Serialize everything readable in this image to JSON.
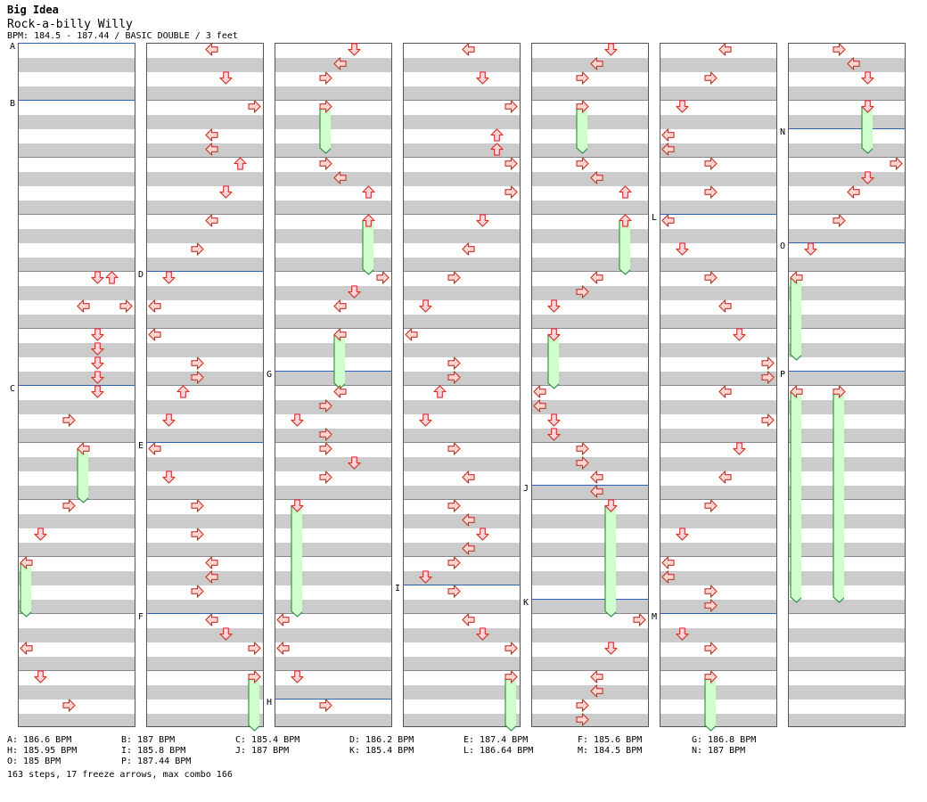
{
  "header": {
    "title": "Big Idea",
    "song": "Rock-a-billy Willy",
    "info": "BPM: 184.5 - 187.44 / BASIC DOUBLE / 3 feet"
  },
  "bpm_changes": [
    {
      "label": "A",
      "col": 0,
      "beat": 0
    },
    {
      "label": "B",
      "col": 0,
      "beat": 8
    },
    {
      "label": "C",
      "col": 0,
      "beat": 48
    },
    {
      "label": "D",
      "col": 1,
      "beat": 32
    },
    {
      "label": "E",
      "col": 1,
      "beat": 56
    },
    {
      "label": "F",
      "col": 1,
      "beat": 80
    },
    {
      "label": "G",
      "col": 2,
      "beat": 46
    },
    {
      "label": "H",
      "col": 2,
      "beat": 92
    },
    {
      "label": "I",
      "col": 3,
      "beat": 76
    },
    {
      "label": "J",
      "col": 4,
      "beat": 62
    },
    {
      "label": "K",
      "col": 4,
      "beat": 78
    },
    {
      "label": "L",
      "col": 5,
      "beat": 24
    },
    {
      "label": "M",
      "col": 5,
      "beat": 80
    },
    {
      "label": "N",
      "col": 6,
      "beat": 12
    },
    {
      "label": "O",
      "col": 6,
      "beat": 28
    },
    {
      "label": "P",
      "col": 6,
      "beat": 46
    }
  ],
  "notes": [
    {
      "c": 0,
      "b": 32,
      "l": 5,
      "d": "down"
    },
    {
      "c": 0,
      "b": 32,
      "l": 6,
      "d": "up"
    },
    {
      "c": 0,
      "b": 36,
      "l": 4,
      "d": "left"
    },
    {
      "c": 0,
      "b": 36,
      "l": 7,
      "d": "right"
    },
    {
      "c": 0,
      "b": 40,
      "l": 5,
      "d": "down"
    },
    {
      "c": 0,
      "b": 42,
      "l": 5,
      "d": "down"
    },
    {
      "c": 0,
      "b": 44,
      "l": 5,
      "d": "down"
    },
    {
      "c": 0,
      "b": 46,
      "l": 5,
      "d": "down"
    },
    {
      "c": 0,
      "b": 48,
      "l": 5,
      "d": "down"
    },
    {
      "c": 0,
      "b": 52,
      "l": 3,
      "d": "right"
    },
    {
      "c": 0,
      "b": 56,
      "l": 4,
      "d": "left",
      "f": 7
    },
    {
      "c": 0,
      "b": 64,
      "l": 3,
      "d": "right"
    },
    {
      "c": 0,
      "b": 68,
      "l": 1,
      "d": "down"
    },
    {
      "c": 0,
      "b": 72,
      "l": 0,
      "d": "left",
      "f": 7
    },
    {
      "c": 0,
      "b": 84,
      "l": 0,
      "d": "left"
    },
    {
      "c": 0,
      "b": 88,
      "l": 1,
      "d": "down"
    },
    {
      "c": 0,
      "b": 92,
      "l": 3,
      "d": "right"
    },
    {
      "c": 1,
      "b": 0,
      "l": 4,
      "d": "left"
    },
    {
      "c": 1,
      "b": 4,
      "l": 5,
      "d": "down"
    },
    {
      "c": 1,
      "b": 8,
      "l": 7,
      "d": "right"
    },
    {
      "c": 1,
      "b": 12,
      "l": 4,
      "d": "left"
    },
    {
      "c": 1,
      "b": 14,
      "l": 4,
      "d": "left"
    },
    {
      "c": 1,
      "b": 16,
      "l": 6,
      "d": "up"
    },
    {
      "c": 1,
      "b": 20,
      "l": 5,
      "d": "down"
    },
    {
      "c": 1,
      "b": 24,
      "l": 4,
      "d": "left"
    },
    {
      "c": 1,
      "b": 28,
      "l": 3,
      "d": "right"
    },
    {
      "c": 1,
      "b": 32,
      "l": 1,
      "d": "down"
    },
    {
      "c": 1,
      "b": 36,
      "l": 0,
      "d": "left"
    },
    {
      "c": 1,
      "b": 40,
      "l": 0,
      "d": "left"
    },
    {
      "c": 1,
      "b": 44,
      "l": 3,
      "d": "right"
    },
    {
      "c": 1,
      "b": 46,
      "l": 3,
      "d": "right"
    },
    {
      "c": 1,
      "b": 48,
      "l": 2,
      "d": "up"
    },
    {
      "c": 1,
      "b": 52,
      "l": 1,
      "d": "down"
    },
    {
      "c": 1,
      "b": 56,
      "l": 0,
      "d": "left"
    },
    {
      "c": 1,
      "b": 60,
      "l": 1,
      "d": "down"
    },
    {
      "c": 1,
      "b": 64,
      "l": 3,
      "d": "right"
    },
    {
      "c": 1,
      "b": 68,
      "l": 3,
      "d": "right"
    },
    {
      "c": 1,
      "b": 72,
      "l": 4,
      "d": "left"
    },
    {
      "c": 1,
      "b": 74,
      "l": 4,
      "d": "left"
    },
    {
      "c": 1,
      "b": 76,
      "l": 3,
      "d": "right"
    },
    {
      "c": 1,
      "b": 80,
      "l": 4,
      "d": "left"
    },
    {
      "c": 1,
      "b": 82,
      "l": 5,
      "d": "down"
    },
    {
      "c": 1,
      "b": 84,
      "l": 7,
      "d": "right"
    },
    {
      "c": 1,
      "b": 88,
      "l": 7,
      "d": "right",
      "f": 7
    },
    {
      "c": 2,
      "b": 0,
      "l": 5,
      "d": "down"
    },
    {
      "c": 2,
      "b": 2,
      "l": 4,
      "d": "left"
    },
    {
      "c": 2,
      "b": 4,
      "l": 3,
      "d": "right"
    },
    {
      "c": 2,
      "b": 8,
      "l": 3,
      "d": "right",
      "f": 6
    },
    {
      "c": 2,
      "b": 16,
      "l": 3,
      "d": "right"
    },
    {
      "c": 2,
      "b": 18,
      "l": 4,
      "d": "left"
    },
    {
      "c": 2,
      "b": 20,
      "l": 6,
      "d": "up"
    },
    {
      "c": 2,
      "b": 24,
      "l": 6,
      "d": "up",
      "f": 7
    },
    {
      "c": 2,
      "b": 32,
      "l": 7,
      "d": "right"
    },
    {
      "c": 2,
      "b": 34,
      "l": 5,
      "d": "down"
    },
    {
      "c": 2,
      "b": 36,
      "l": 4,
      "d": "left"
    },
    {
      "c": 2,
      "b": 40,
      "l": 4,
      "d": "left",
      "f": 7
    },
    {
      "c": 2,
      "b": 48,
      "l": 4,
      "d": "left"
    },
    {
      "c": 2,
      "b": 50,
      "l": 3,
      "d": "right"
    },
    {
      "c": 2,
      "b": 52,
      "l": 1,
      "d": "down"
    },
    {
      "c": 2,
      "b": 54,
      "l": 3,
      "d": "right"
    },
    {
      "c": 2,
      "b": 56,
      "l": 3,
      "d": "right"
    },
    {
      "c": 2,
      "b": 58,
      "l": 5,
      "d": "down"
    },
    {
      "c": 2,
      "b": 60,
      "l": 3,
      "d": "right"
    },
    {
      "c": 2,
      "b": 64,
      "l": 1,
      "d": "down",
      "f": 15
    },
    {
      "c": 2,
      "b": 80,
      "l": 0,
      "d": "left"
    },
    {
      "c": 2,
      "b": 84,
      "l": 0,
      "d": "left"
    },
    {
      "c": 2,
      "b": 88,
      "l": 1,
      "d": "down"
    },
    {
      "c": 2,
      "b": 92,
      "l": 3,
      "d": "right"
    },
    {
      "c": 3,
      "b": 0,
      "l": 4,
      "d": "left"
    },
    {
      "c": 3,
      "b": 4,
      "l": 5,
      "d": "down"
    },
    {
      "c": 3,
      "b": 8,
      "l": 7,
      "d": "right"
    },
    {
      "c": 3,
      "b": 12,
      "l": 6,
      "d": "up"
    },
    {
      "c": 3,
      "b": 14,
      "l": 6,
      "d": "up"
    },
    {
      "c": 3,
      "b": 16,
      "l": 7,
      "d": "right"
    },
    {
      "c": 3,
      "b": 20,
      "l": 7,
      "d": "right"
    },
    {
      "c": 3,
      "b": 24,
      "l": 5,
      "d": "down"
    },
    {
      "c": 3,
      "b": 28,
      "l": 4,
      "d": "left"
    },
    {
      "c": 3,
      "b": 32,
      "l": 3,
      "d": "right"
    },
    {
      "c": 3,
      "b": 36,
      "l": 1,
      "d": "down"
    },
    {
      "c": 3,
      "b": 40,
      "l": 0,
      "d": "left"
    },
    {
      "c": 3,
      "b": 44,
      "l": 3,
      "d": "right"
    },
    {
      "c": 3,
      "b": 46,
      "l": 3,
      "d": "right"
    },
    {
      "c": 3,
      "b": 48,
      "l": 2,
      "d": "up"
    },
    {
      "c": 3,
      "b": 52,
      "l": 1,
      "d": "down"
    },
    {
      "c": 3,
      "b": 56,
      "l": 3,
      "d": "right"
    },
    {
      "c": 3,
      "b": 60,
      "l": 4,
      "d": "left"
    },
    {
      "c": 3,
      "b": 64,
      "l": 3,
      "d": "right"
    },
    {
      "c": 3,
      "b": 66,
      "l": 4,
      "d": "left"
    },
    {
      "c": 3,
      "b": 68,
      "l": 5,
      "d": "down"
    },
    {
      "c": 3,
      "b": 70,
      "l": 4,
      "d": "left"
    },
    {
      "c": 3,
      "b": 72,
      "l": 3,
      "d": "right"
    },
    {
      "c": 3,
      "b": 74,
      "l": 1,
      "d": "down"
    },
    {
      "c": 3,
      "b": 76,
      "l": 3,
      "d": "right"
    },
    {
      "c": 3,
      "b": 80,
      "l": 4,
      "d": "left"
    },
    {
      "c": 3,
      "b": 82,
      "l": 5,
      "d": "down"
    },
    {
      "c": 3,
      "b": 84,
      "l": 7,
      "d": "right"
    },
    {
      "c": 3,
      "b": 88,
      "l": 7,
      "d": "right",
      "f": 7
    },
    {
      "c": 4,
      "b": 0,
      "l": 5,
      "d": "down"
    },
    {
      "c": 4,
      "b": 2,
      "l": 4,
      "d": "left"
    },
    {
      "c": 4,
      "b": 4,
      "l": 3,
      "d": "right"
    },
    {
      "c": 4,
      "b": 8,
      "l": 3,
      "d": "right",
      "f": 6
    },
    {
      "c": 4,
      "b": 16,
      "l": 3,
      "d": "right"
    },
    {
      "c": 4,
      "b": 18,
      "l": 4,
      "d": "left"
    },
    {
      "c": 4,
      "b": 20,
      "l": 6,
      "d": "up"
    },
    {
      "c": 4,
      "b": 24,
      "l": 6,
      "d": "up",
      "f": 7
    },
    {
      "c": 4,
      "b": 32,
      "l": 4,
      "d": "left"
    },
    {
      "c": 4,
      "b": 34,
      "l": 3,
      "d": "right"
    },
    {
      "c": 4,
      "b": 36,
      "l": 1,
      "d": "down"
    },
    {
      "c": 4,
      "b": 40,
      "l": 1,
      "d": "down",
      "f": 7
    },
    {
      "c": 4,
      "b": 48,
      "l": 0,
      "d": "left"
    },
    {
      "c": 4,
      "b": 50,
      "l": 0,
      "d": "left"
    },
    {
      "c": 4,
      "b": 52,
      "l": 1,
      "d": "down"
    },
    {
      "c": 4,
      "b": 54,
      "l": 1,
      "d": "down"
    },
    {
      "c": 4,
      "b": 56,
      "l": 3,
      "d": "right"
    },
    {
      "c": 4,
      "b": 58,
      "l": 3,
      "d": "right"
    },
    {
      "c": 4,
      "b": 60,
      "l": 4,
      "d": "left"
    },
    {
      "c": 4,
      "b": 62,
      "l": 4,
      "d": "left"
    },
    {
      "c": 4,
      "b": 64,
      "l": 5,
      "d": "down",
      "f": 15
    },
    {
      "c": 4,
      "b": 80,
      "l": 7,
      "d": "right"
    },
    {
      "c": 4,
      "b": 84,
      "l": 5,
      "d": "down"
    },
    {
      "c": 4,
      "b": 88,
      "l": 4,
      "d": "left"
    },
    {
      "c": 4,
      "b": 90,
      "l": 4,
      "d": "left"
    },
    {
      "c": 4,
      "b": 92,
      "l": 3,
      "d": "right"
    },
    {
      "c": 4,
      "b": 94,
      "l": 3,
      "d": "right"
    },
    {
      "c": 5,
      "b": 0,
      "l": 4,
      "d": "left"
    },
    {
      "c": 5,
      "b": 4,
      "l": 3,
      "d": "right"
    },
    {
      "c": 5,
      "b": 8,
      "l": 1,
      "d": "down"
    },
    {
      "c": 5,
      "b": 12,
      "l": 0,
      "d": "left"
    },
    {
      "c": 5,
      "b": 14,
      "l": 0,
      "d": "left"
    },
    {
      "c": 5,
      "b": 16,
      "l": 3,
      "d": "right"
    },
    {
      "c": 5,
      "b": 20,
      "l": 3,
      "d": "right"
    },
    {
      "c": 5,
      "b": 24,
      "l": 0,
      "d": "left"
    },
    {
      "c": 5,
      "b": 28,
      "l": 1,
      "d": "down"
    },
    {
      "c": 5,
      "b": 32,
      "l": 3,
      "d": "right"
    },
    {
      "c": 5,
      "b": 36,
      "l": 4,
      "d": "left"
    },
    {
      "c": 5,
      "b": 40,
      "l": 5,
      "d": "down"
    },
    {
      "c": 5,
      "b": 44,
      "l": 7,
      "d": "right"
    },
    {
      "c": 5,
      "b": 46,
      "l": 7,
      "d": "right"
    },
    {
      "c": 5,
      "b": 48,
      "l": 4,
      "d": "left"
    },
    {
      "c": 5,
      "b": 52,
      "l": 7,
      "d": "right"
    },
    {
      "c": 5,
      "b": 56,
      "l": 5,
      "d": "down"
    },
    {
      "c": 5,
      "b": 60,
      "l": 4,
      "d": "left"
    },
    {
      "c": 5,
      "b": 64,
      "l": 3,
      "d": "right"
    },
    {
      "c": 5,
      "b": 68,
      "l": 1,
      "d": "down"
    },
    {
      "c": 5,
      "b": 72,
      "l": 0,
      "d": "left"
    },
    {
      "c": 5,
      "b": 74,
      "l": 0,
      "d": "left"
    },
    {
      "c": 5,
      "b": 76,
      "l": 3,
      "d": "right"
    },
    {
      "c": 5,
      "b": 78,
      "l": 3,
      "d": "right"
    },
    {
      "c": 5,
      "b": 82,
      "l": 1,
      "d": "down"
    },
    {
      "c": 5,
      "b": 84,
      "l": 3,
      "d": "right"
    },
    {
      "c": 5,
      "b": 88,
      "l": 3,
      "d": "right",
      "f": 7
    },
    {
      "c": 6,
      "b": 0,
      "l": 3,
      "d": "right"
    },
    {
      "c": 6,
      "b": 2,
      "l": 4,
      "d": "left"
    },
    {
      "c": 6,
      "b": 4,
      "l": 5,
      "d": "down"
    },
    {
      "c": 6,
      "b": 8,
      "l": 5,
      "d": "down",
      "f": 6
    },
    {
      "c": 6,
      "b": 16,
      "l": 7,
      "d": "right"
    },
    {
      "c": 6,
      "b": 18,
      "l": 5,
      "d": "down"
    },
    {
      "c": 6,
      "b": 20,
      "l": 4,
      "d": "left"
    },
    {
      "c": 6,
      "b": 24,
      "l": 3,
      "d": "right"
    },
    {
      "c": 6,
      "b": 28,
      "l": 1,
      "d": "down"
    },
    {
      "c": 6,
      "b": 32,
      "l": 0,
      "d": "left",
      "f": 11
    },
    {
      "c": 6,
      "b": 48,
      "l": 0,
      "d": "left",
      "f": 29
    },
    {
      "c": 6,
      "b": 48,
      "l": 3,
      "d": "right",
      "f": 29
    }
  ],
  "legend": [
    [
      "A: 186.6 BPM",
      "B: 187 BPM",
      "C: 185.4 BPM",
      "D: 186.2 BPM",
      "E: 187.4 BPM",
      "F: 185.6 BPM",
      "G: 186.8 BPM"
    ],
    [
      "H: 185.95 BPM",
      "I: 185.8 BPM",
      "J: 187 BPM",
      "K: 185.4 BPM",
      "L: 186.64 BPM",
      "M: 184.5 BPM",
      "N: 187 BPM"
    ],
    [
      "O: 185 BPM",
      "P: 187.44 BPM"
    ]
  ],
  "stats": "163 steps, 17 freeze arrows, max combo 166",
  "colors": {
    "arrow_fill": "#ffd6d6",
    "arrow_stroke": "#d03030",
    "freeze_fill": "#ccffcc",
    "freeze_stroke": "#208020",
    "bpm_line": "#2f62b8"
  }
}
